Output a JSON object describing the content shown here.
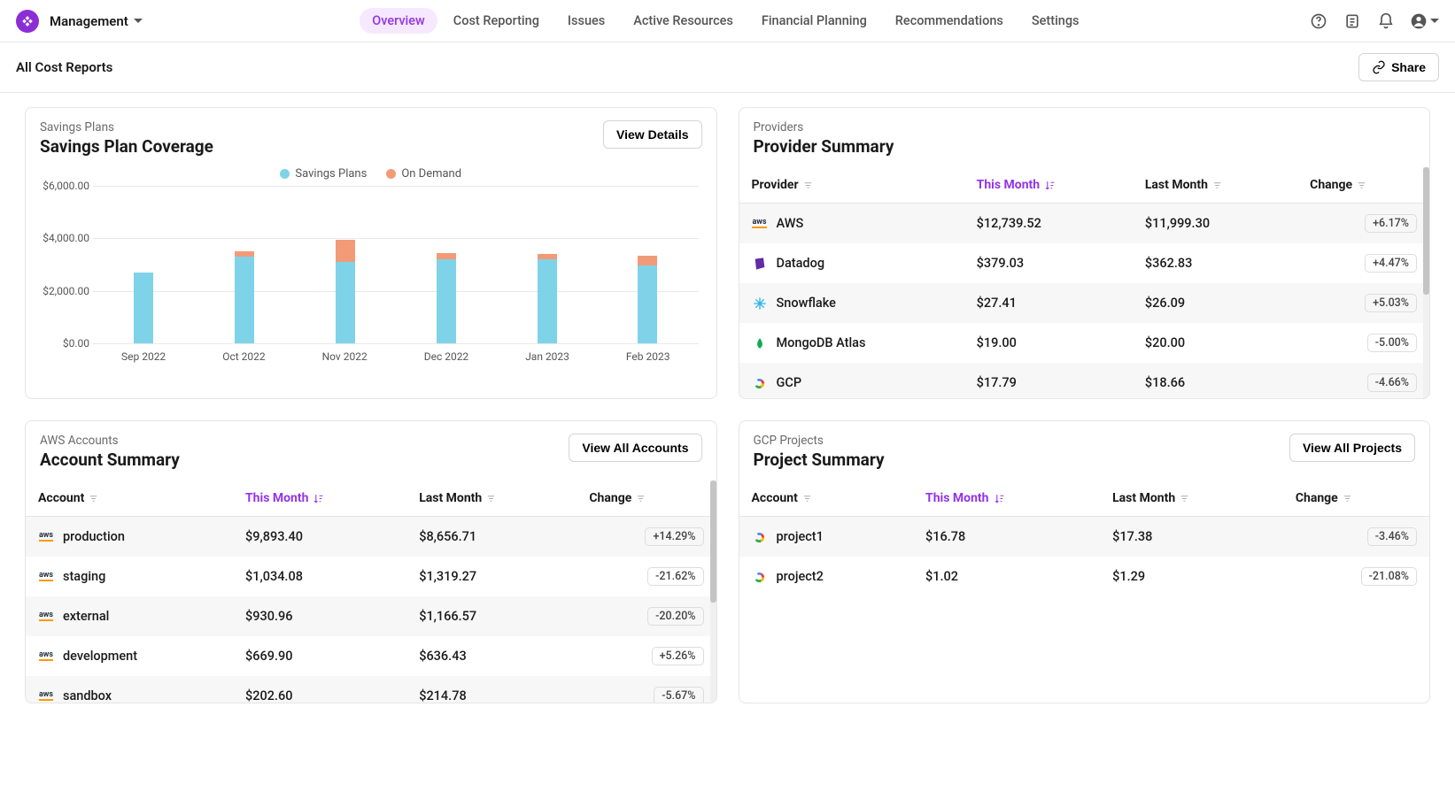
{
  "nav": {
    "workspace": "Management",
    "tabs": [
      "Overview",
      "Cost Reporting",
      "Issues",
      "Active Resources",
      "Financial Planning",
      "Recommendations",
      "Settings"
    ],
    "active_tab": 0
  },
  "secondbar": {
    "breadcrumb": "All Cost Reports",
    "share_label": "Share"
  },
  "savings_panel": {
    "pretitle": "Savings Plans",
    "title": "Savings Plan Coverage",
    "button": "View Details",
    "chart": {
      "type": "stacked-bar",
      "legend": [
        {
          "label": "Savings Plans",
          "color": "#7fd3e8"
        },
        {
          "label": "On Demand",
          "color": "#f29b76"
        }
      ],
      "ymax": 6000,
      "yticks": [
        0,
        2000,
        4000,
        6000
      ],
      "ytick_labels": [
        "$0.00",
        "$2,000.00",
        "$4,000.00",
        "$6,000.00"
      ],
      "categories": [
        "Sep 2022",
        "Oct 2022",
        "Nov 2022",
        "Dec 2022",
        "Jan 2023",
        "Feb 2023"
      ],
      "series": {
        "savings": [
          2700,
          3300,
          3100,
          3200,
          3200,
          2950
        ],
        "on_demand": [
          0,
          200,
          850,
          250,
          200,
          400
        ]
      },
      "background": "#ffffff",
      "grid_color": "#e8e8e8"
    }
  },
  "providers_panel": {
    "pretitle": "Providers",
    "title": "Provider Summary",
    "columns": [
      "Provider",
      "This Month",
      "Last Month",
      "Change"
    ],
    "sorted_col": 1,
    "rows": [
      {
        "icon": "aws",
        "name": "AWS",
        "this_month": "$12,739.52",
        "last_month": "$11,999.30",
        "change": "+6.17%"
      },
      {
        "icon": "datadog",
        "name": "Datadog",
        "this_month": "$379.03",
        "last_month": "$362.83",
        "change": "+4.47%"
      },
      {
        "icon": "snowflake",
        "name": "Snowflake",
        "this_month": "$27.41",
        "last_month": "$26.09",
        "change": "+5.03%"
      },
      {
        "icon": "mongodb",
        "name": "MongoDB Atlas",
        "this_month": "$19.00",
        "last_month": "$20.00",
        "change": "-5.00%"
      },
      {
        "icon": "gcp",
        "name": "GCP",
        "this_month": "$17.79",
        "last_month": "$18.66",
        "change": "-4.66%"
      }
    ],
    "icon_colors": {
      "aws": "#ff9900",
      "datadog": "#632ca6",
      "snowflake": "#29b5e8",
      "mongodb": "#13aa52",
      "gcp_r": "#ea4335",
      "gcp_y": "#fbbc04",
      "gcp_g": "#34a853",
      "gcp_b": "#4285f4"
    }
  },
  "accounts_panel": {
    "pretitle": "AWS Accounts",
    "title": "Account Summary",
    "button": "View All Accounts",
    "columns": [
      "Account",
      "This Month",
      "Last Month",
      "Change"
    ],
    "sorted_col": 1,
    "rows": [
      {
        "icon": "aws",
        "name": "production",
        "this_month": "$9,893.40",
        "last_month": "$8,656.71",
        "change": "+14.29%"
      },
      {
        "icon": "aws",
        "name": "staging",
        "this_month": "$1,034.08",
        "last_month": "$1,319.27",
        "change": "-21.62%"
      },
      {
        "icon": "aws",
        "name": "external",
        "this_month": "$930.96",
        "last_month": "$1,166.57",
        "change": "-20.20%"
      },
      {
        "icon": "aws",
        "name": "development",
        "this_month": "$669.90",
        "last_month": "$636.43",
        "change": "+5.26%"
      },
      {
        "icon": "aws",
        "name": "sandbox",
        "this_month": "$202.60",
        "last_month": "$214.78",
        "change": "-5.67%"
      }
    ]
  },
  "projects_panel": {
    "pretitle": "GCP Projects",
    "title": "Project Summary",
    "button": "View All Projects",
    "columns": [
      "Account",
      "This Month",
      "Last Month",
      "Change"
    ],
    "sorted_col": 1,
    "rows": [
      {
        "icon": "gcp",
        "name": "project1",
        "this_month": "$16.78",
        "last_month": "$17.38",
        "change": "-3.46%"
      },
      {
        "icon": "gcp",
        "name": "project2",
        "this_month": "$1.02",
        "last_month": "$1.29",
        "change": "-21.08%"
      }
    ]
  }
}
